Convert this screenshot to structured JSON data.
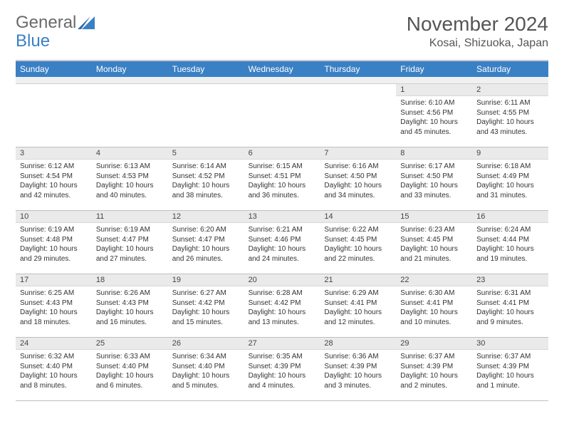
{
  "logo": {
    "text1": "General",
    "text2": "Blue"
  },
  "title": "November 2024",
  "location": "Kosai, Shizuoka, Japan",
  "colors": {
    "header_bg": "#3a80c4",
    "header_text": "#ffffff",
    "cell_head_bg": "#eaeaea",
    "border": "#bfbfbf",
    "page_bg": "#ffffff"
  },
  "daynames": [
    "Sunday",
    "Monday",
    "Tuesday",
    "Wednesday",
    "Thursday",
    "Friday",
    "Saturday"
  ],
  "weeks": [
    [
      {
        "empty": true
      },
      {
        "empty": true
      },
      {
        "empty": true
      },
      {
        "empty": true
      },
      {
        "empty": true
      },
      {
        "num": "1",
        "sunrise": "Sunrise: 6:10 AM",
        "sunset": "Sunset: 4:56 PM",
        "daylight": "Daylight: 10 hours and 45 minutes."
      },
      {
        "num": "2",
        "sunrise": "Sunrise: 6:11 AM",
        "sunset": "Sunset: 4:55 PM",
        "daylight": "Daylight: 10 hours and 43 minutes."
      }
    ],
    [
      {
        "num": "3",
        "sunrise": "Sunrise: 6:12 AM",
        "sunset": "Sunset: 4:54 PM",
        "daylight": "Daylight: 10 hours and 42 minutes."
      },
      {
        "num": "4",
        "sunrise": "Sunrise: 6:13 AM",
        "sunset": "Sunset: 4:53 PM",
        "daylight": "Daylight: 10 hours and 40 minutes."
      },
      {
        "num": "5",
        "sunrise": "Sunrise: 6:14 AM",
        "sunset": "Sunset: 4:52 PM",
        "daylight": "Daylight: 10 hours and 38 minutes."
      },
      {
        "num": "6",
        "sunrise": "Sunrise: 6:15 AM",
        "sunset": "Sunset: 4:51 PM",
        "daylight": "Daylight: 10 hours and 36 minutes."
      },
      {
        "num": "7",
        "sunrise": "Sunrise: 6:16 AM",
        "sunset": "Sunset: 4:50 PM",
        "daylight": "Daylight: 10 hours and 34 minutes."
      },
      {
        "num": "8",
        "sunrise": "Sunrise: 6:17 AM",
        "sunset": "Sunset: 4:50 PM",
        "daylight": "Daylight: 10 hours and 33 minutes."
      },
      {
        "num": "9",
        "sunrise": "Sunrise: 6:18 AM",
        "sunset": "Sunset: 4:49 PM",
        "daylight": "Daylight: 10 hours and 31 minutes."
      }
    ],
    [
      {
        "num": "10",
        "sunrise": "Sunrise: 6:19 AM",
        "sunset": "Sunset: 4:48 PM",
        "daylight": "Daylight: 10 hours and 29 minutes."
      },
      {
        "num": "11",
        "sunrise": "Sunrise: 6:19 AM",
        "sunset": "Sunset: 4:47 PM",
        "daylight": "Daylight: 10 hours and 27 minutes."
      },
      {
        "num": "12",
        "sunrise": "Sunrise: 6:20 AM",
        "sunset": "Sunset: 4:47 PM",
        "daylight": "Daylight: 10 hours and 26 minutes."
      },
      {
        "num": "13",
        "sunrise": "Sunrise: 6:21 AM",
        "sunset": "Sunset: 4:46 PM",
        "daylight": "Daylight: 10 hours and 24 minutes."
      },
      {
        "num": "14",
        "sunrise": "Sunrise: 6:22 AM",
        "sunset": "Sunset: 4:45 PM",
        "daylight": "Daylight: 10 hours and 22 minutes."
      },
      {
        "num": "15",
        "sunrise": "Sunrise: 6:23 AM",
        "sunset": "Sunset: 4:45 PM",
        "daylight": "Daylight: 10 hours and 21 minutes."
      },
      {
        "num": "16",
        "sunrise": "Sunrise: 6:24 AM",
        "sunset": "Sunset: 4:44 PM",
        "daylight": "Daylight: 10 hours and 19 minutes."
      }
    ],
    [
      {
        "num": "17",
        "sunrise": "Sunrise: 6:25 AM",
        "sunset": "Sunset: 4:43 PM",
        "daylight": "Daylight: 10 hours and 18 minutes."
      },
      {
        "num": "18",
        "sunrise": "Sunrise: 6:26 AM",
        "sunset": "Sunset: 4:43 PM",
        "daylight": "Daylight: 10 hours and 16 minutes."
      },
      {
        "num": "19",
        "sunrise": "Sunrise: 6:27 AM",
        "sunset": "Sunset: 4:42 PM",
        "daylight": "Daylight: 10 hours and 15 minutes."
      },
      {
        "num": "20",
        "sunrise": "Sunrise: 6:28 AM",
        "sunset": "Sunset: 4:42 PM",
        "daylight": "Daylight: 10 hours and 13 minutes."
      },
      {
        "num": "21",
        "sunrise": "Sunrise: 6:29 AM",
        "sunset": "Sunset: 4:41 PM",
        "daylight": "Daylight: 10 hours and 12 minutes."
      },
      {
        "num": "22",
        "sunrise": "Sunrise: 6:30 AM",
        "sunset": "Sunset: 4:41 PM",
        "daylight": "Daylight: 10 hours and 10 minutes."
      },
      {
        "num": "23",
        "sunrise": "Sunrise: 6:31 AM",
        "sunset": "Sunset: 4:41 PM",
        "daylight": "Daylight: 10 hours and 9 minutes."
      }
    ],
    [
      {
        "num": "24",
        "sunrise": "Sunrise: 6:32 AM",
        "sunset": "Sunset: 4:40 PM",
        "daylight": "Daylight: 10 hours and 8 minutes."
      },
      {
        "num": "25",
        "sunrise": "Sunrise: 6:33 AM",
        "sunset": "Sunset: 4:40 PM",
        "daylight": "Daylight: 10 hours and 6 minutes."
      },
      {
        "num": "26",
        "sunrise": "Sunrise: 6:34 AM",
        "sunset": "Sunset: 4:40 PM",
        "daylight": "Daylight: 10 hours and 5 minutes."
      },
      {
        "num": "27",
        "sunrise": "Sunrise: 6:35 AM",
        "sunset": "Sunset: 4:39 PM",
        "daylight": "Daylight: 10 hours and 4 minutes."
      },
      {
        "num": "28",
        "sunrise": "Sunrise: 6:36 AM",
        "sunset": "Sunset: 4:39 PM",
        "daylight": "Daylight: 10 hours and 3 minutes."
      },
      {
        "num": "29",
        "sunrise": "Sunrise: 6:37 AM",
        "sunset": "Sunset: 4:39 PM",
        "daylight": "Daylight: 10 hours and 2 minutes."
      },
      {
        "num": "30",
        "sunrise": "Sunrise: 6:37 AM",
        "sunset": "Sunset: 4:39 PM",
        "daylight": "Daylight: 10 hours and 1 minute."
      }
    ]
  ]
}
